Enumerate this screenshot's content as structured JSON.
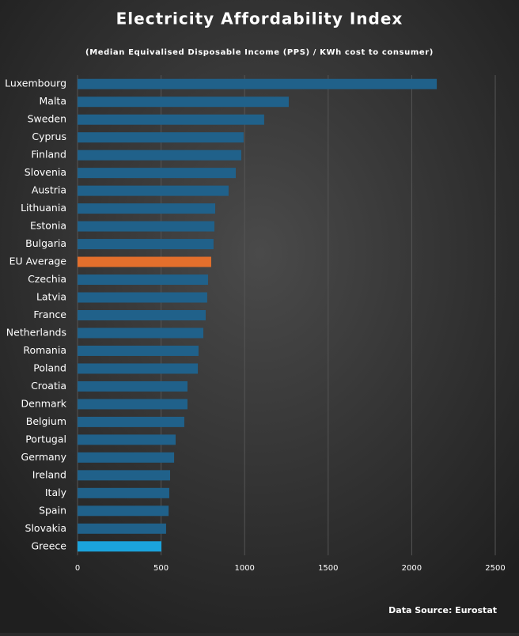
{
  "chart_data": {
    "type": "bar",
    "orientation": "horizontal",
    "title": "Electricity Affordability Index",
    "subtitle": "(Median Equivalised Disposable Income (PPS) / KWh cost to consumer)",
    "source": "Data Source: Eurostat",
    "categories": [
      "Luxembourg",
      "Malta",
      "Sweden",
      "Cyprus",
      "Finland",
      "Slovenia",
      "Austria",
      "Lithuania",
      "Estonia",
      "Bulgaria",
      "EU Average",
      "Czechia",
      "Latvia",
      "France",
      "Netherlands",
      "Romania",
      "Poland",
      "Croatia",
      "Denmark",
      "Belgium",
      "Portugal",
      "Germany",
      "Ireland",
      "Italy",
      "Spain",
      "Slovakia",
      "Greece"
    ],
    "values": [
      2150,
      1264,
      1117,
      994,
      980,
      947,
      904,
      824,
      819,
      814,
      800,
      781,
      776,
      767,
      753,
      724,
      720,
      658,
      658,
      639,
      587,
      578,
      554,
      549,
      545,
      530,
      502
    ],
    "colors": [
      "#20618a",
      "#20618a",
      "#20618a",
      "#20618a",
      "#20618a",
      "#20618a",
      "#20618a",
      "#20618a",
      "#20618a",
      "#20618a",
      "#e36f2c",
      "#20618a",
      "#20618a",
      "#20618a",
      "#20618a",
      "#20618a",
      "#20618a",
      "#20618a",
      "#20618a",
      "#20618a",
      "#20618a",
      "#20618a",
      "#20618a",
      "#20618a",
      "#20618a",
      "#20618a",
      "#1ba3dc"
    ],
    "xlim": [
      0,
      2500
    ],
    "xticks": [
      0,
      500,
      1000,
      1500,
      2000,
      2500
    ],
    "grid": true
  }
}
